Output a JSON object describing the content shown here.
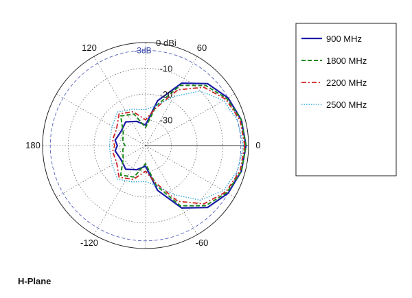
{
  "chart_data": {
    "type": "polar",
    "title": "H-Plane",
    "angle_unit": "deg",
    "angle_ticks": [
      "0",
      "60",
      "120",
      "180",
      "-120",
      "-60"
    ],
    "radial_ticks": [
      "0 dBi",
      "-10",
      "-20",
      "-30"
    ],
    "radial_range_dbi": [
      -40,
      0
    ],
    "reference_circle": {
      "label": "-3dB",
      "value_dbi": -3
    },
    "grid": "on",
    "legend_position": "right",
    "series": [
      {
        "name": "900 MHz",
        "color": "#1a1aa8",
        "style": "solid",
        "points": [
          [
            0,
            -1
          ],
          [
            15,
            -1.5
          ],
          [
            30,
            -3
          ],
          [
            45,
            -6
          ],
          [
            60,
            -12
          ],
          [
            75,
            -22
          ],
          [
            90,
            -32
          ],
          [
            110,
            -30
          ],
          [
            130,
            -28
          ],
          [
            150,
            -29
          ],
          [
            170,
            -28
          ],
          [
            180,
            -29
          ],
          [
            -170,
            -28
          ],
          [
            -150,
            -29
          ],
          [
            -130,
            -28
          ],
          [
            -110,
            -30
          ],
          [
            -90,
            -32
          ],
          [
            -75,
            -22
          ],
          [
            -60,
            -12
          ],
          [
            -45,
            -6
          ],
          [
            -30,
            -3
          ],
          [
            -15,
            -1.5
          ]
        ]
      },
      {
        "name": "1800 MHz",
        "color": "#1e8a1e",
        "style": "dashed",
        "points": [
          [
            0,
            -1
          ],
          [
            15,
            -1.5
          ],
          [
            30,
            -3.5
          ],
          [
            45,
            -7
          ],
          [
            60,
            -13
          ],
          [
            75,
            -24
          ],
          [
            90,
            -33
          ],
          [
            110,
            -27
          ],
          [
            130,
            -25
          ],
          [
            150,
            -30
          ],
          [
            170,
            -31
          ],
          [
            180,
            -32
          ],
          [
            -170,
            -31
          ],
          [
            -150,
            -30
          ],
          [
            -130,
            -25
          ],
          [
            -110,
            -27
          ],
          [
            -90,
            -33
          ],
          [
            -75,
            -24
          ],
          [
            -60,
            -13
          ],
          [
            -45,
            -7
          ],
          [
            -30,
            -3.5
          ],
          [
            -15,
            -1.5
          ]
        ]
      },
      {
        "name": "2200 MHz",
        "color": "#cc2222",
        "style": "dashdot",
        "points": [
          [
            0,
            -1.5
          ],
          [
            15,
            -2
          ],
          [
            30,
            -4
          ],
          [
            45,
            -8
          ],
          [
            60,
            -15
          ],
          [
            75,
            -25
          ],
          [
            90,
            -30
          ],
          [
            110,
            -26
          ],
          [
            130,
            -24
          ],
          [
            150,
            -27
          ],
          [
            170,
            -27
          ],
          [
            180,
            -28
          ],
          [
            -170,
            -27
          ],
          [
            -150,
            -27
          ],
          [
            -130,
            -24
          ],
          [
            -110,
            -26
          ],
          [
            -90,
            -30
          ],
          [
            -75,
            -25
          ],
          [
            -60,
            -15
          ],
          [
            -45,
            -8
          ],
          [
            -30,
            -4
          ],
          [
            -15,
            -2
          ]
        ]
      },
      {
        "name": "2500 MHz",
        "color": "#33aadd",
        "style": "dotted",
        "points": [
          [
            0,
            -2
          ],
          [
            15,
            -3
          ],
          [
            30,
            -5
          ],
          [
            45,
            -10
          ],
          [
            60,
            -18
          ],
          [
            75,
            -24
          ],
          [
            90,
            -26
          ],
          [
            110,
            -25
          ],
          [
            130,
            -23
          ],
          [
            150,
            -25
          ],
          [
            170,
            -26
          ],
          [
            180,
            -26
          ],
          [
            -170,
            -26
          ],
          [
            -150,
            -25
          ],
          [
            -130,
            -23
          ],
          [
            -110,
            -25
          ],
          [
            -90,
            -26
          ],
          [
            -75,
            -24
          ],
          [
            -60,
            -18
          ],
          [
            -45,
            -10
          ],
          [
            -30,
            -5
          ],
          [
            -15,
            -3
          ]
        ]
      }
    ]
  }
}
